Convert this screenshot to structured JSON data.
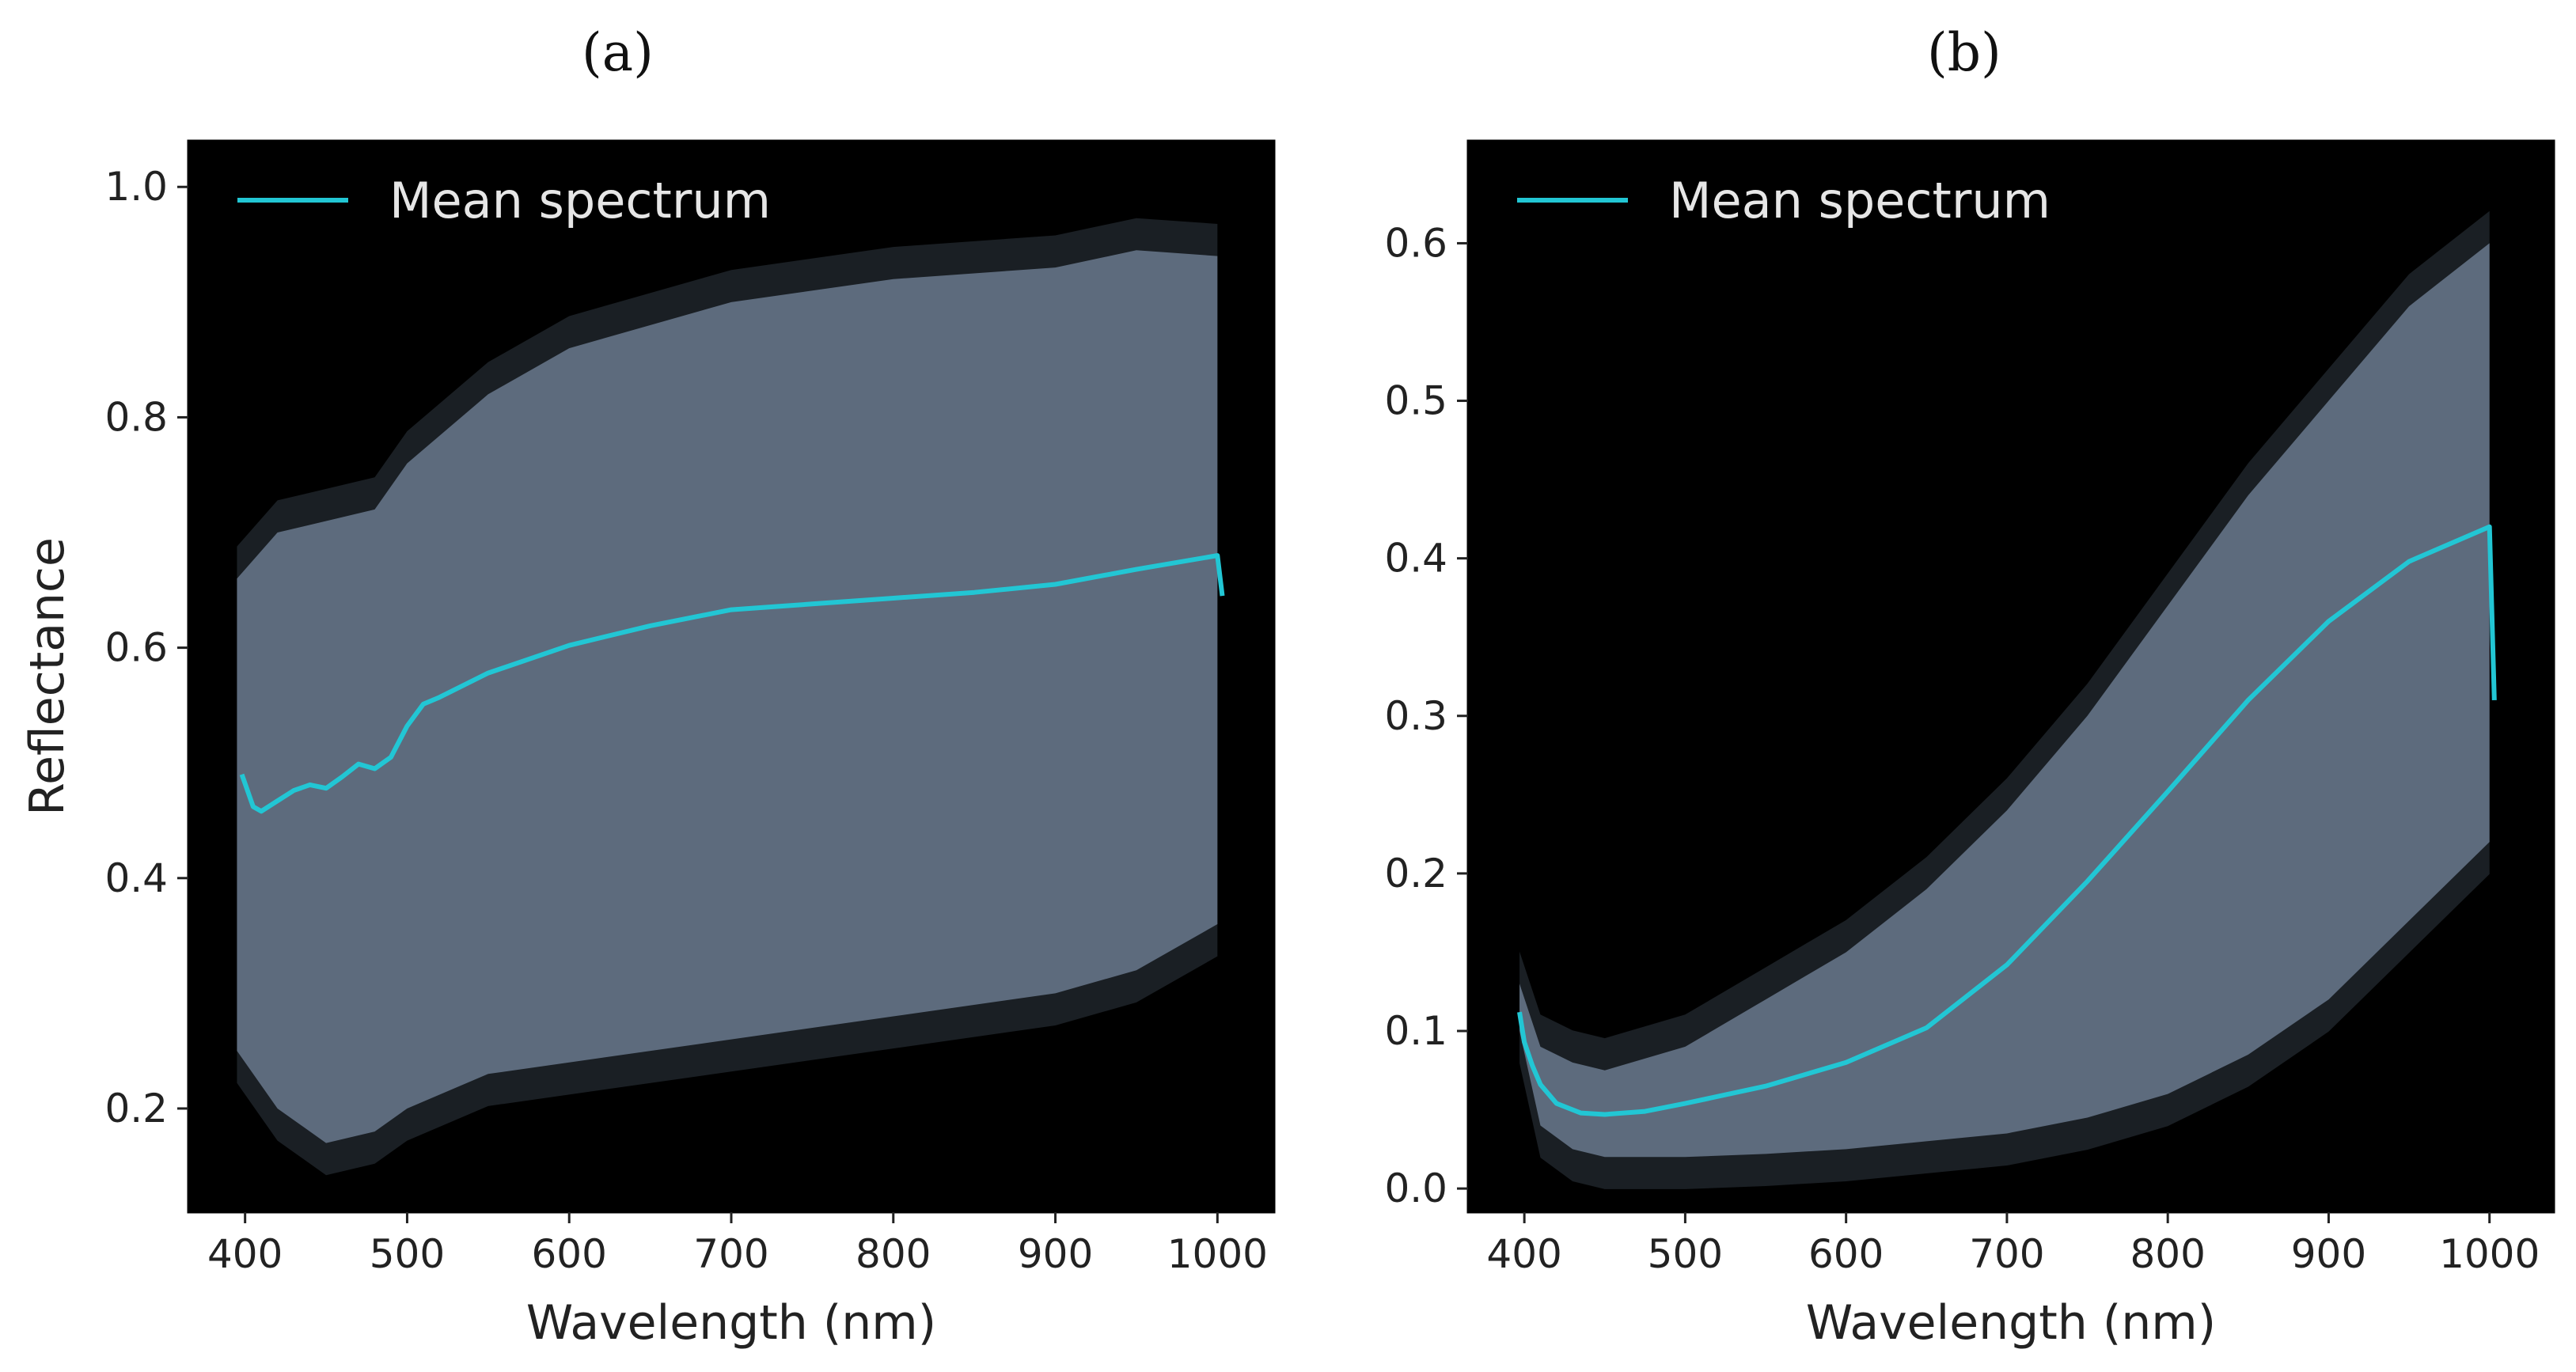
{
  "chart_data": [
    {
      "panel": "(a)",
      "type": "line",
      "xlabel": "Wavelength (nm)",
      "ylabel": "Reflectance",
      "xlim": [
        365,
        1035
      ],
      "ylim": [
        0.11,
        1.04
      ],
      "xticks": [
        400,
        500,
        600,
        700,
        800,
        900,
        1000
      ],
      "yticks": [
        0.2,
        0.4,
        0.6,
        0.8,
        1.0
      ],
      "ytick_labels": [
        "0.2",
        "0.4",
        "0.6",
        "0.8",
        "1.0"
      ],
      "legend": {
        "position": "top-left",
        "entries": [
          "Mean spectrum"
        ]
      },
      "background": "#000000",
      "band_color": "#5d6b7d",
      "series": [
        {
          "name": "Mean spectrum",
          "color": "#22c6d4",
          "x": [
            398,
            405,
            410,
            420,
            430,
            440,
            450,
            460,
            470,
            480,
            490,
            500,
            510,
            520,
            550,
            600,
            650,
            700,
            750,
            800,
            850,
            900,
            950,
            1000,
            1003
          ],
          "y": [
            0.49,
            0.462,
            0.458,
            0.467,
            0.476,
            0.481,
            0.478,
            0.488,
            0.499,
            0.495,
            0.505,
            0.532,
            0.551,
            0.557,
            0.578,
            0.602,
            0.619,
            0.633,
            0.638,
            0.643,
            0.648,
            0.655,
            0.668,
            0.68,
            0.645
          ]
        }
      ],
      "band": {
        "x": [
          395,
          420,
          450,
          480,
          500,
          550,
          600,
          700,
          800,
          900,
          950,
          1000
        ],
        "upper": [
          0.66,
          0.7,
          0.71,
          0.72,
          0.76,
          0.82,
          0.86,
          0.9,
          0.92,
          0.93,
          0.945,
          0.94
        ],
        "lower": [
          0.25,
          0.2,
          0.17,
          0.18,
          0.2,
          0.23,
          0.24,
          0.26,
          0.28,
          0.3,
          0.32,
          0.36
        ]
      }
    },
    {
      "panel": "(b)",
      "type": "line",
      "xlabel": "Wavelength (nm)",
      "ylabel": "",
      "xlim": [
        365,
        1040
      ],
      "ylim": [
        -0.015,
        0.665
      ],
      "xticks": [
        400,
        500,
        600,
        700,
        800,
        900,
        1000
      ],
      "yticks": [
        0.0,
        0.1,
        0.2,
        0.3,
        0.4,
        0.5,
        0.6
      ],
      "ytick_labels": [
        "0.0",
        "0.1",
        "0.2",
        "0.3",
        "0.4",
        "0.5",
        "0.6"
      ],
      "legend": {
        "position": "top-left",
        "entries": [
          "Mean spectrum"
        ]
      },
      "background": "#000000",
      "band_color": "#5d6b7d",
      "series": [
        {
          "name": "Mean spectrum",
          "color": "#22c6d4",
          "x": [
            397,
            400,
            405,
            410,
            420,
            435,
            450,
            475,
            500,
            550,
            600,
            650,
            700,
            750,
            800,
            850,
            900,
            950,
            1000,
            1003
          ],
          "y": [
            0.112,
            0.093,
            0.078,
            0.066,
            0.054,
            0.048,
            0.047,
            0.049,
            0.054,
            0.065,
            0.08,
            0.102,
            0.142,
            0.195,
            0.252,
            0.31,
            0.36,
            0.398,
            0.42,
            0.31
          ]
        }
      ],
      "band": {
        "x": [
          397,
          410,
          430,
          450,
          500,
          550,
          600,
          650,
          700,
          750,
          800,
          850,
          900,
          950,
          1000
        ],
        "upper": [
          0.13,
          0.09,
          0.08,
          0.075,
          0.09,
          0.12,
          0.15,
          0.19,
          0.24,
          0.3,
          0.37,
          0.44,
          0.5,
          0.56,
          0.6
        ],
        "lower": [
          0.1,
          0.04,
          0.025,
          0.02,
          0.02,
          0.022,
          0.025,
          0.03,
          0.035,
          0.045,
          0.06,
          0.085,
          0.12,
          0.17,
          0.22
        ]
      }
    }
  ]
}
